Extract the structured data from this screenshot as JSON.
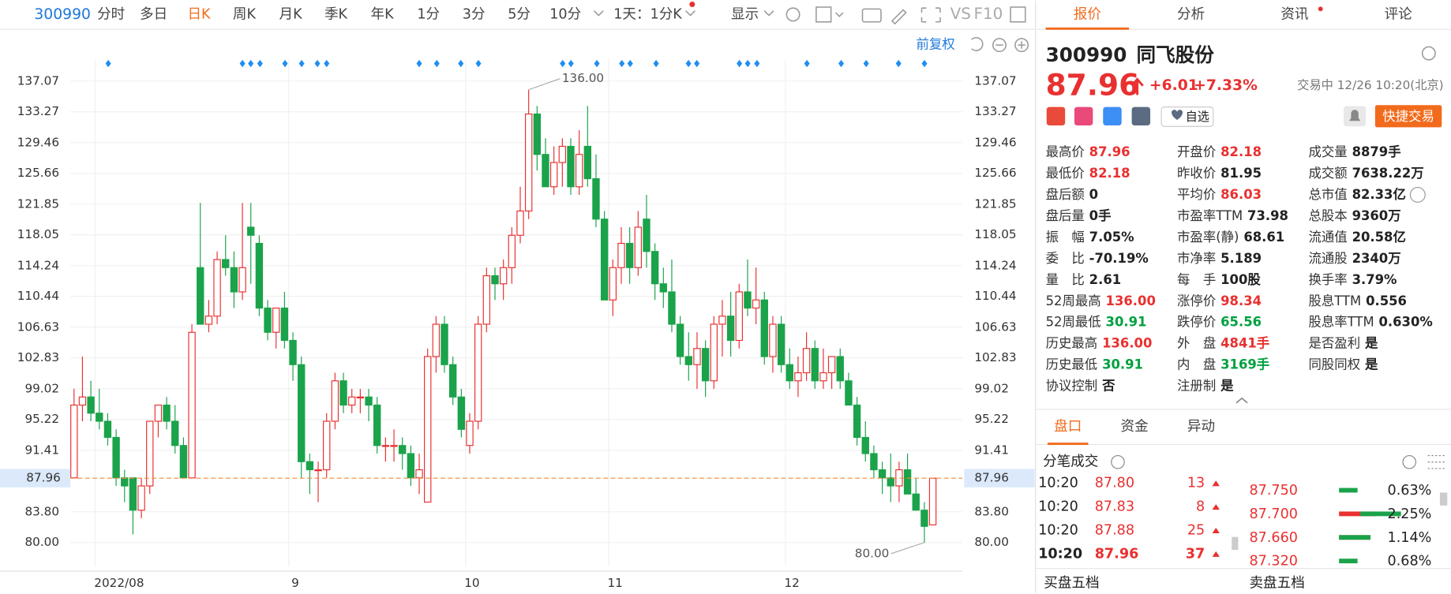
{
  "toolbar": {
    "code": "300990",
    "tabs": [
      "分时",
      "多日",
      "日K",
      "周K",
      "月K",
      "季K",
      "年K",
      "1分",
      "3分",
      "5分",
      "10分",
      "1天：1分K",
      "显示"
    ],
    "active_tab": 2,
    "tools": [
      "VS",
      "F10"
    ]
  },
  "chart_data": {
    "type": "candlestick",
    "adjust": "前复权",
    "ylim": [
      77.03,
      139.7
    ],
    "yticks": [
      137.07,
      133.27,
      129.46,
      125.66,
      121.85,
      118.05,
      114.24,
      110.44,
      106.63,
      102.83,
      99.02,
      95.22,
      91.41,
      {
        "value": 83.8,
        "label": "83.80"
      },
      {
        "value": 80,
        "label": "80.00"
      }
    ],
    "last_price": {
      "value": 87.96,
      "label": "87.96"
    },
    "high_label": "136.00",
    "low_label": "80.00",
    "up_color": "#e93030",
    "down_color": "#1aa34a",
    "grid": true,
    "xlabels": [
      "2022/08",
      "9",
      "10",
      "11",
      "12"
    ],
    "candles": [
      [
        88,
        99,
        88,
        97
      ],
      [
        97,
        103,
        95,
        98
      ],
      [
        98,
        100,
        95,
        96
      ],
      [
        96,
        99,
        94,
        95
      ],
      [
        95,
        96,
        92,
        93
      ],
      [
        93,
        94,
        87,
        88
      ],
      [
        88,
        89,
        85,
        87
      ],
      [
        88,
        88,
        81,
        84
      ],
      [
        84,
        88,
        83,
        87
      ],
      [
        87,
        95,
        86,
        95
      ],
      [
        95,
        97,
        93,
        97
      ],
      [
        97,
        98,
        94,
        95
      ],
      [
        95,
        97,
        91,
        92
      ],
      [
        92,
        93,
        88,
        88
      ],
      [
        88,
        107,
        88,
        106
      ],
      [
        114,
        122,
        107,
        107
      ],
      [
        107,
        110,
        106,
        108
      ],
      [
        108,
        116,
        107,
        115
      ],
      [
        115,
        118,
        113,
        114
      ],
      [
        114,
        116,
        109,
        111
      ],
      [
        111,
        122,
        110,
        114
      ],
      [
        119,
        122,
        112,
        118
      ],
      [
        117,
        118,
        108,
        109
      ],
      [
        109,
        110,
        105,
        106
      ],
      [
        106,
        109,
        104,
        109
      ],
      [
        109,
        111,
        104,
        105
      ],
      [
        105,
        106,
        100,
        102
      ],
      [
        102,
        103,
        88,
        90
      ],
      [
        90,
        91,
        86,
        89
      ],
      [
        89,
        90,
        85,
        89
      ],
      [
        89,
        96,
        88,
        95
      ],
      [
        95,
        101,
        94,
        100
      ],
      [
        100,
        101,
        96,
        97
      ],
      [
        97,
        99,
        96,
        98
      ],
      [
        98,
        99,
        96,
        98
      ],
      [
        98,
        99,
        95,
        97
      ],
      [
        97,
        98,
        91,
        92
      ],
      [
        92,
        93,
        90,
        92
      ],
      [
        92,
        94,
        90,
        92
      ],
      [
        92,
        93,
        89,
        91
      ],
      [
        91,
        92,
        87,
        88
      ],
      [
        88,
        91,
        86,
        89
      ],
      [
        85,
        104,
        85,
        103
      ],
      [
        103,
        108,
        101,
        107
      ],
      [
        107,
        108,
        101,
        102
      ],
      [
        102,
        103,
        97,
        98
      ],
      [
        98,
        99,
        93,
        94
      ],
      [
        92,
        96,
        91,
        95
      ],
      [
        95,
        108,
        94,
        107
      ],
      [
        107,
        114,
        106,
        113
      ],
      [
        113,
        114,
        110,
        112
      ],
      [
        112,
        115,
        110,
        114
      ],
      [
        114,
        119,
        112,
        118
      ],
      [
        118,
        124,
        117,
        121
      ],
      [
        121,
        136,
        120,
        133
      ],
      [
        133,
        134,
        126,
        128
      ],
      [
        128,
        130,
        124,
        124
      ],
      [
        124,
        129,
        123,
        127
      ],
      [
        127,
        130,
        124,
        129
      ],
      [
        129,
        130,
        123,
        124
      ],
      [
        124,
        131,
        123,
        128
      ],
      [
        129,
        134,
        124,
        125
      ],
      [
        125,
        128,
        119,
        120
      ],
      [
        120,
        121,
        110,
        110
      ],
      [
        110,
        115,
        108,
        114
      ],
      [
        114,
        119,
        112,
        117
      ],
      [
        117,
        119,
        112,
        114
      ],
      [
        114,
        121,
        113,
        119
      ],
      [
        120,
        123,
        114,
        116
      ],
      [
        116,
        117,
        110,
        112
      ],
      [
        112,
        114,
        109,
        111
      ],
      [
        111,
        115,
        106,
        107
      ],
      [
        107,
        108,
        102,
        103
      ],
      [
        103,
        106,
        100,
        102
      ],
      [
        102,
        106,
        99,
        104
      ],
      [
        104,
        105,
        98,
        100
      ],
      [
        100,
        108,
        99,
        107
      ],
      [
        107,
        110,
        103,
        108
      ],
      [
        108,
        111,
        103,
        105
      ],
      [
        105,
        112,
        104,
        111
      ],
      [
        111,
        115,
        108,
        109
      ],
      [
        109,
        114,
        107,
        110
      ],
      [
        110,
        111,
        102,
        103
      ],
      [
        103,
        108,
        101,
        107
      ],
      [
        107,
        108,
        101,
        102
      ],
      [
        102,
        104,
        99,
        100
      ],
      [
        100,
        103,
        98,
        101
      ],
      [
        101,
        106,
        100,
        104
      ],
      [
        104,
        105,
        99,
        100
      ],
      [
        100,
        104,
        99,
        101
      ],
      [
        101,
        103,
        99,
        103
      ],
      [
        103,
        104,
        99,
        100
      ],
      [
        100,
        101,
        97,
        97
      ],
      [
        97,
        98,
        92,
        93
      ],
      [
        93,
        95,
        90,
        91
      ],
      [
        91,
        92,
        88,
        89
      ],
      [
        89,
        90,
        86,
        88
      ],
      [
        88,
        91,
        85,
        87
      ],
      [
        87,
        90,
        85,
        89
      ],
      [
        89,
        91,
        86,
        86
      ],
      [
        86,
        88,
        84,
        84
      ],
      [
        84,
        85,
        80,
        82
      ],
      [
        82.18,
        87.96,
        82.18,
        87.96
      ]
    ]
  },
  "panel": {
    "tabs": [
      "报价",
      "分析",
      "资讯",
      "评论"
    ],
    "code": "300990",
    "name": "同飞股份",
    "price": "87.96",
    "change": "+6.01",
    "pct": "+7.33%",
    "status": "交易中 12/26 10:20(北京)",
    "watch": "自选",
    "trade": "快捷交易",
    "stats": [
      [
        [
          "最高价",
          "87.96",
          "#e93030"
        ],
        [
          "最低价",
          "82.18",
          "#e93030"
        ],
        [
          "盘后额",
          "0",
          "#222"
        ],
        [
          "盘后量",
          "0手",
          "#222"
        ],
        [
          "振　幅",
          "7.05%",
          "#222"
        ],
        [
          "委　比",
          "-70.19%",
          "#222"
        ],
        [
          "量　比",
          "2.61",
          "#222"
        ],
        [
          "52周最高",
          "136.00",
          "#e93030"
        ],
        [
          "52周最低",
          "30.91",
          "#00a040"
        ],
        [
          "历史最高",
          "136.00",
          "#e93030"
        ],
        [
          "历史最低",
          "30.91",
          "#00a040"
        ],
        [
          "协议控制",
          "否",
          "#222"
        ]
      ],
      [
        [
          "开盘价",
          "82.18",
          "#e93030"
        ],
        [
          "昨收价",
          "81.95",
          "#222"
        ],
        [
          "平均价",
          "86.03",
          "#e93030"
        ],
        [
          "市盈率TTM",
          "73.98",
          "#222"
        ],
        [
          "市盈率(静)",
          "68.61",
          "#222"
        ],
        [
          "市净率",
          "5.189",
          "#222"
        ],
        [
          "每　手",
          "100股",
          "#222"
        ],
        [
          "涨停价",
          "98.34",
          "#e93030"
        ],
        [
          "跌停价",
          "65.56",
          "#00a040"
        ],
        [
          "外　盘",
          "4841手",
          "#e93030"
        ],
        [
          "内　盘",
          "3169手",
          "#00a040"
        ],
        [
          "注册制",
          "是",
          "#222"
        ]
      ],
      [
        [
          "成交量",
          "8879手",
          "#222"
        ],
        [
          "成交额",
          "7638.22万",
          "#222"
        ],
        [
          "总市值",
          "82.33亿",
          "#222"
        ],
        [
          "总股本",
          "9360万",
          "#222"
        ],
        [
          "流通值",
          "20.58亿",
          "#222"
        ],
        [
          "流通股",
          "2340万",
          "#222"
        ],
        [
          "换手率",
          "3.79%",
          "#222"
        ],
        [
          "股息TTM",
          "0.556",
          "#222"
        ],
        [
          "股息率TTM",
          "0.630%",
          "#222"
        ],
        [
          "是否盈利",
          "是",
          "#222"
        ],
        [
          "同股同权",
          "是",
          "#222"
        ]
      ]
    ],
    "subtabs": [
      "盘口",
      "资金",
      "异动"
    ],
    "ticks_title": "分笔成交",
    "trades": [
      [
        "10:20",
        "87.80",
        "13"
      ],
      [
        "10:20",
        "87.83",
        "8"
      ],
      [
        "10:20",
        "87.88",
        "25"
      ],
      [
        "10:20",
        "87.96",
        "37"
      ]
    ],
    "levels": [
      [
        "87.750",
        "0.63%"
      ],
      [
        "87.700",
        "2.25%"
      ],
      [
        "87.660",
        "1.14%"
      ],
      [
        "87.320",
        "0.68%"
      ]
    ],
    "bottom": [
      "买盘五档",
      "卖盘五档"
    ]
  }
}
